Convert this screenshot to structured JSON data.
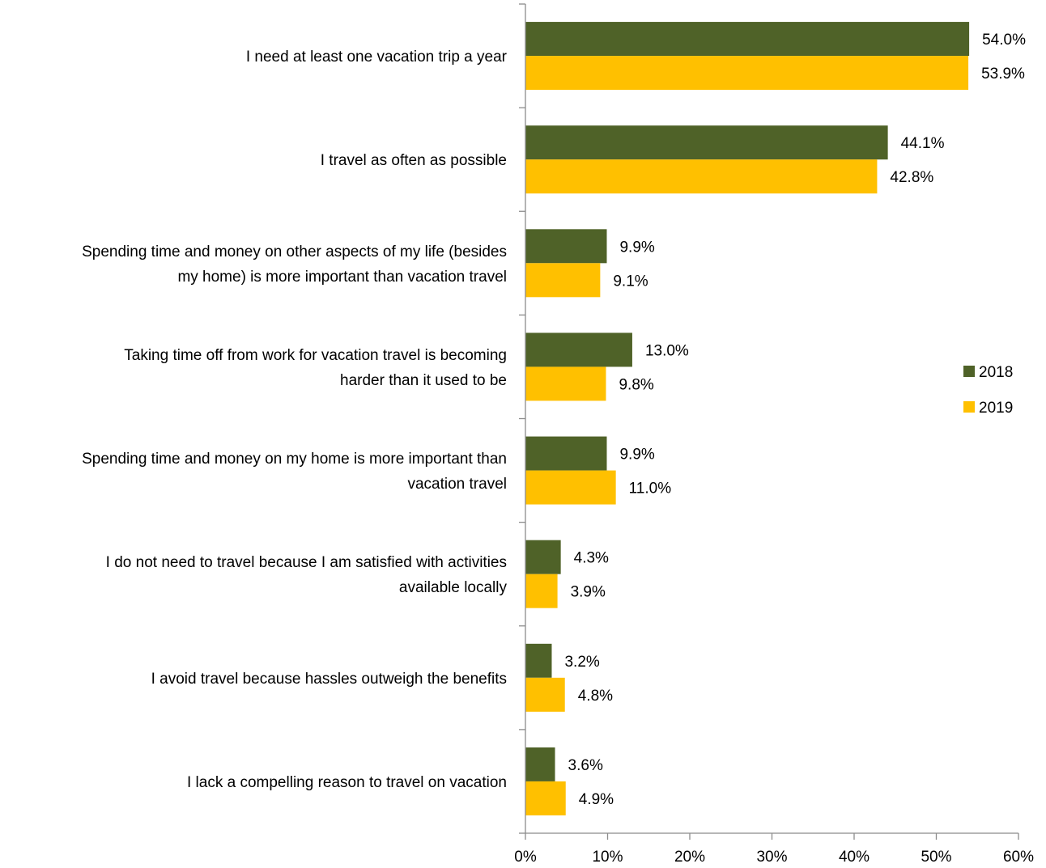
{
  "chart_data": {
    "type": "bar",
    "orientation": "horizontal",
    "categories": [
      [
        "I need at least one vacation trip a year"
      ],
      [
        "I travel as often as possible"
      ],
      [
        "Spending time and money on other aspects of my life (besides",
        "my home) is more important than vacation travel"
      ],
      [
        "Taking time off from work for vacation travel is becoming",
        "harder than it used to be"
      ],
      [
        "Spending time and money on my home is more important than",
        "vacation travel"
      ],
      [
        "I do not need to travel because I am satisfied with activities",
        "available locally"
      ],
      [
        "I avoid travel because hassles outweigh the benefits"
      ],
      [
        "I lack a compelling reason to travel on vacation"
      ]
    ],
    "series": [
      {
        "name": "2018",
        "color": "#4f6228",
        "values": [
          54.0,
          44.1,
          9.9,
          13.0,
          9.9,
          4.3,
          3.2,
          3.6
        ],
        "labels": [
          "54.0%",
          "44.1%",
          "9.9%",
          "13.0%",
          "9.9%",
          "4.3%",
          "3.2%",
          "3.6%"
        ]
      },
      {
        "name": "2019",
        "color": "#ffc000",
        "values": [
          53.9,
          42.8,
          9.1,
          9.8,
          11.0,
          3.9,
          4.8,
          4.9
        ],
        "labels": [
          "53.9%",
          "42.8%",
          "9.1%",
          "9.8%",
          "11.0%",
          "3.9%",
          "4.8%",
          "4.9%"
        ]
      }
    ],
    "xlim": [
      0,
      60
    ],
    "x_ticks": [
      0,
      10,
      20,
      30,
      40,
      50,
      60
    ],
    "x_tick_labels": [
      "0%",
      "10%",
      "20%",
      "30%",
      "40%",
      "50%",
      "60%"
    ],
    "grid": false,
    "legend_position": "right"
  }
}
